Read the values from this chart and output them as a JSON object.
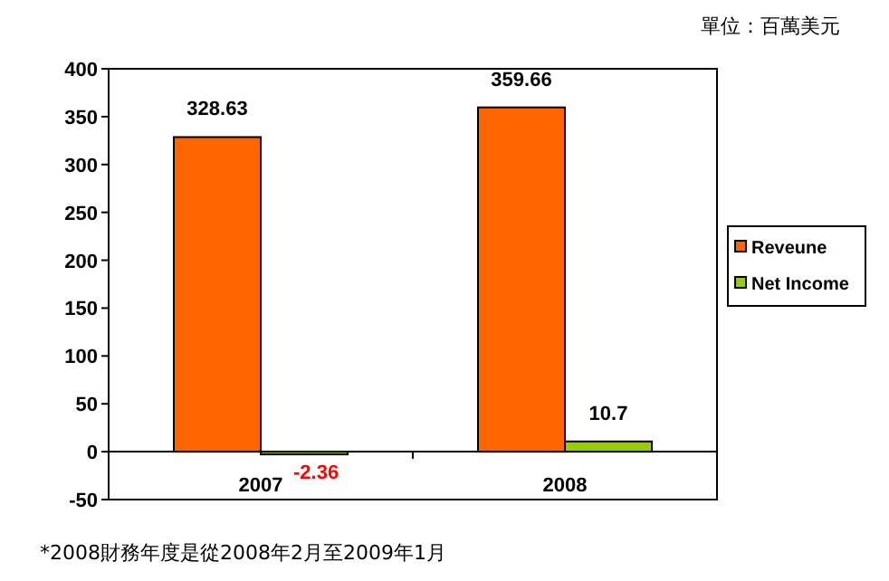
{
  "chart_data": {
    "type": "bar",
    "categories": [
      "2007",
      "2008"
    ],
    "series": [
      {
        "name": "Reveune",
        "color": "#ff6600",
        "values": [
          328.63,
          359.66
        ]
      },
      {
        "name": "Net Income",
        "color": "#99cc00",
        "values": [
          -2.36,
          10.7
        ]
      }
    ],
    "ylim": [
      -50,
      400
    ],
    "yticks": [
      -50,
      0,
      50,
      100,
      150,
      200,
      250,
      300,
      350,
      400
    ],
    "data_labels": true,
    "legend": "right",
    "annotations": [
      "單位：百萬美元",
      "*2008財務年度是從2008年2月至2009年1月"
    ]
  }
}
